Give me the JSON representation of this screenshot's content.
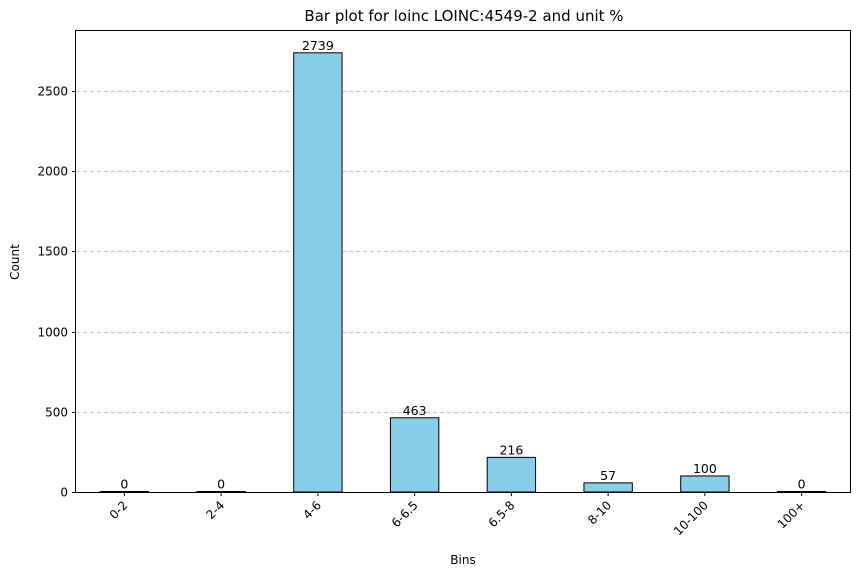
{
  "chart_data": {
    "type": "bar",
    "title": "Bar plot for loinc LOINC:4549-2 and unit %",
    "xlabel": "Bins",
    "ylabel": "Count",
    "categories": [
      "0-2",
      "2-4",
      "4-6",
      "6-6.5",
      "6.5-8",
      "8-10",
      "10-100",
      "100+"
    ],
    "values": [
      0,
      0,
      2739,
      463,
      216,
      57,
      100,
      0
    ],
    "data_labels": [
      "0",
      "0",
      "2739",
      "463",
      "216",
      "57",
      "100",
      "0"
    ],
    "ylim": [
      0,
      2875
    ],
    "yticks": [
      0,
      500,
      1000,
      1500,
      2000,
      2500
    ],
    "ytick_labels": [
      "0",
      "500",
      "1000",
      "1500",
      "2000",
      "2500"
    ],
    "grid": "y-dashed",
    "xtick_rotation": 45,
    "bar_color": "#87CEEB",
    "bar_edge_color": "#000000",
    "grid_color": "#c8c8c8"
  }
}
